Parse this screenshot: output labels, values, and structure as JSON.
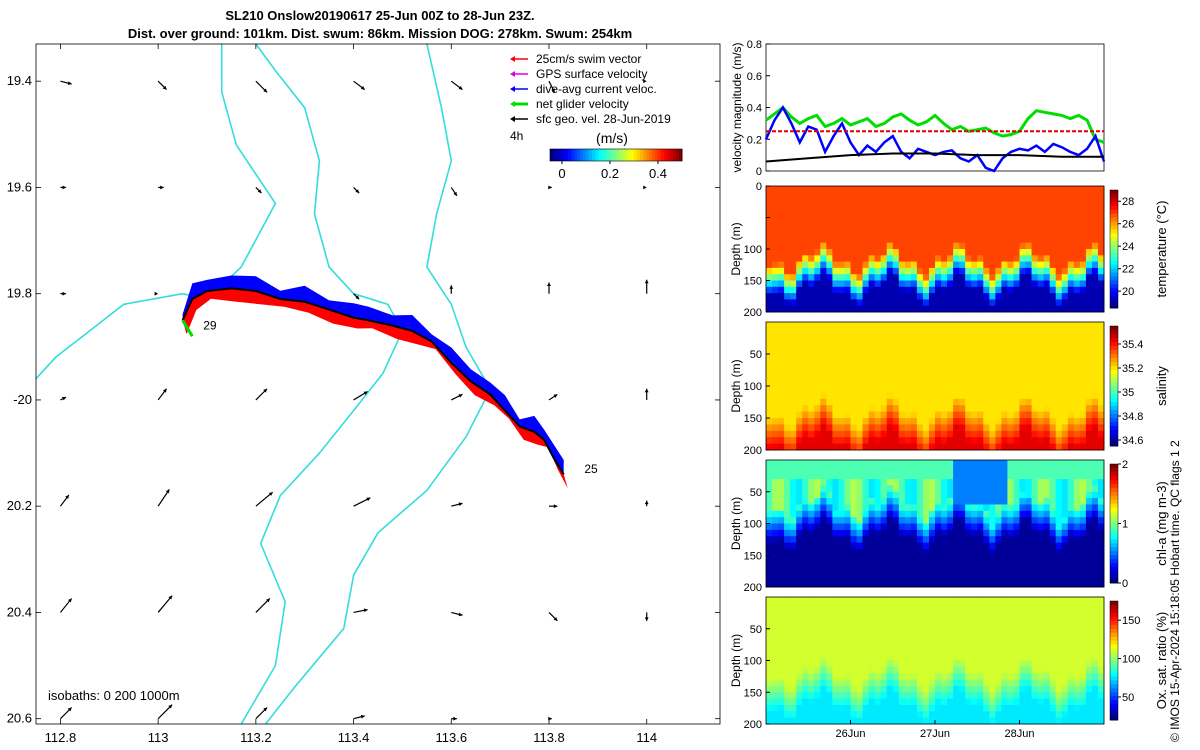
{
  "title_line1": "SL210 Onslow20190617 25-Jun 00Z to 28-Jun 23Z.",
  "title_line2": "Dist. over ground: 101km. Dist. swum: 86km. Mission DOG: 278km. Swum: 254km",
  "timestamp": "© IMOS 15-Apr-2024 15:18:05 Hobart time. QC flags 1  2",
  "colors": {
    "coast": "#33dddd",
    "swim": "#ff0000",
    "gps": "#dd00dd",
    "current": "#0000ff",
    "net": "#00dd00",
    "sfc": "#000000",
    "refline": "#dd0000"
  },
  "chart_data": [
    {
      "type": "map",
      "title": "SL210 Onslow20190617 25-Jun 00Z to 28-Jun 23Z.",
      "xlim": [
        112.75,
        114.15
      ],
      "ylim": [
        -20.61,
        -19.33
      ],
      "x_ticks": [
        112.8,
        113,
        113.2,
        113.4,
        113.6,
        113.8,
        114
      ],
      "x_tick_labels": [
        "112.8",
        "113",
        "113.2",
        "113.4",
        "113.6",
        "113.8",
        "114"
      ],
      "y_ticks": [
        -19.4,
        -19.6,
        -19.8,
        -20,
        -20.2,
        -20.4,
        -20.6
      ],
      "y_tick_labels": [
        "19.4",
        "19.6",
        "19.8",
        "-20",
        "20.2",
        "20.4",
        "20.6"
      ],
      "legend": {
        "position": "top-right",
        "entries": [
          {
            "label": "25cm/s swim vector",
            "color": "#ff0000"
          },
          {
            "label": "GPS surface velocity",
            "color": "#dd00dd"
          },
          {
            "label": "dive-avg current veloc.",
            "color": "#0000ff"
          },
          {
            "label": "net glider velocity",
            "color": "#00dd00"
          },
          {
            "label": "sfc geo. vel. 28-Jun-2019",
            "color": "#000000"
          }
        ],
        "interval_label": "4h",
        "colorbar_label": "(m/s)",
        "colorbar_ticks": [
          0,
          0.2,
          0.4
        ],
        "colorbar_tick_labels": [
          "0",
          "0.2",
          "0.4"
        ],
        "colorbar_range": [
          -0.05,
          0.5
        ]
      },
      "track_labels": [
        {
          "text": "29",
          "lon": 113.08,
          "lat": -19.86
        },
        {
          "text": "25",
          "lon": 113.86,
          "lat": -20.13
        }
      ],
      "track": [
        [
          113.05,
          -19.85
        ],
        [
          113.07,
          -19.81
        ],
        [
          113.1,
          -19.795
        ],
        [
          113.15,
          -19.79
        ],
        [
          113.2,
          -19.795
        ],
        [
          113.25,
          -19.81
        ],
        [
          113.3,
          -19.815
        ],
        [
          113.35,
          -19.83
        ],
        [
          113.4,
          -19.845
        ],
        [
          113.43,
          -19.85
        ],
        [
          113.48,
          -19.86
        ],
        [
          113.52,
          -19.87
        ],
        [
          113.56,
          -19.89
        ],
        [
          113.6,
          -19.93
        ],
        [
          113.64,
          -19.965
        ],
        [
          113.68,
          -19.99
        ],
        [
          113.71,
          -20.02
        ],
        [
          113.74,
          -20.05
        ],
        [
          113.77,
          -20.06
        ],
        [
          113.79,
          -20.075
        ],
        [
          113.81,
          -20.11
        ],
        [
          113.83,
          -20.14
        ]
      ],
      "coastline": [
        [
          113.13,
          -19.33
        ],
        [
          113.13,
          -19.42
        ],
        [
          113.16,
          -19.52
        ],
        [
          113.24,
          -19.63
        ],
        [
          113.17,
          -19.75
        ],
        [
          113.1,
          -19.81
        ],
        [
          113.05,
          -19.8
        ],
        [
          112.93,
          -19.82
        ],
        [
          112.79,
          -19.92
        ],
        [
          112.75,
          -19.96
        ]
      ],
      "isobath": [
        [
          113.2,
          -19.33
        ],
        [
          113.24,
          -19.38
        ],
        [
          113.3,
          -19.45
        ],
        [
          113.33,
          -19.55
        ],
        [
          113.32,
          -19.65
        ],
        [
          113.35,
          -19.75
        ],
        [
          113.4,
          -19.8
        ],
        [
          113.47,
          -19.82
        ],
        [
          113.5,
          -19.87
        ],
        [
          113.46,
          -19.95
        ],
        [
          113.4,
          -20.02
        ],
        [
          113.33,
          -20.1
        ],
        [
          113.25,
          -20.18
        ],
        [
          113.21,
          -20.27
        ],
        [
          113.26,
          -20.38
        ],
        [
          113.24,
          -20.5
        ],
        [
          113.17,
          -20.61
        ]
      ],
      "isobath2": [
        [
          113.55,
          -19.33
        ],
        [
          113.58,
          -19.45
        ],
        [
          113.6,
          -19.55
        ],
        [
          113.57,
          -19.65
        ],
        [
          113.55,
          -19.75
        ],
        [
          113.6,
          -19.82
        ],
        [
          113.63,
          -19.9
        ],
        [
          113.68,
          -19.98
        ],
        [
          113.63,
          -20.07
        ],
        [
          113.55,
          -20.17
        ],
        [
          113.45,
          -20.25
        ],
        [
          113.4,
          -20.33
        ],
        [
          113.38,
          -20.43
        ],
        [
          113.28,
          -20.54
        ],
        [
          113.22,
          -20.61
        ]
      ],
      "isobaths_label": "isobaths: 0   200  1000m",
      "sfc_vectors": [
        {
          "lon": 112.8,
          "lat": -19.4,
          "u": 0.04,
          "v": -0.01
        },
        {
          "lon": 113.0,
          "lat": -19.4,
          "u": 0.03,
          "v": -0.03
        },
        {
          "lon": 113.2,
          "lat": -19.4,
          "u": 0.04,
          "v": -0.04
        },
        {
          "lon": 113.4,
          "lat": -19.4,
          "u": 0.04,
          "v": -0.03
        },
        {
          "lon": 113.6,
          "lat": -19.4,
          "u": 0.04,
          "v": -0.03
        },
        {
          "lon": 113.8,
          "lat": -19.4,
          "u": 0.02,
          "v": -0.04
        },
        {
          "lon": 112.8,
          "lat": -19.6,
          "u": 0.02,
          "v": 0.0
        },
        {
          "lon": 113.0,
          "lat": -19.6,
          "u": 0.02,
          "v": 0.0
        },
        {
          "lon": 113.2,
          "lat": -19.6,
          "u": 0.02,
          "v": -0.02
        },
        {
          "lon": 113.4,
          "lat": -19.6,
          "u": 0.02,
          "v": -0.02
        },
        {
          "lon": 113.6,
          "lat": -19.6,
          "u": 0.02,
          "v": -0.03
        },
        {
          "lon": 113.8,
          "lat": -19.6,
          "u": 0.01,
          "v": 0.0
        },
        {
          "lon": 112.8,
          "lat": -19.8,
          "u": 0.02,
          "v": 0.0
        },
        {
          "lon": 113.0,
          "lat": -19.8,
          "u": 0.0,
          "v": 0.0
        },
        {
          "lon": 113.4,
          "lat": -19.8,
          "u": 0.02,
          "v": -0.02
        },
        {
          "lon": 113.6,
          "lat": -19.8,
          "u": 0.0,
          "v": 0.03
        },
        {
          "lon": 113.8,
          "lat": -19.8,
          "u": 0.0,
          "v": 0.04
        },
        {
          "lon": 114.0,
          "lat": -19.8,
          "u": 0.0,
          "v": 0.05
        },
        {
          "lon": 114.0,
          "lat": -19.6,
          "u": 0.0,
          "v": 0.0
        },
        {
          "lon": 114.0,
          "lat": -19.4,
          "u": 0.0,
          "v": 0.0
        },
        {
          "lon": 112.8,
          "lat": -20.0,
          "u": 0.02,
          "v": 0.01
        },
        {
          "lon": 113.0,
          "lat": -20.0,
          "u": 0.03,
          "v": 0.04
        },
        {
          "lon": 113.2,
          "lat": -20.0,
          "u": 0.04,
          "v": 0.04
        },
        {
          "lon": 113.4,
          "lat": -20.0,
          "u": 0.05,
          "v": 0.03
        },
        {
          "lon": 113.6,
          "lat": -20.0,
          "u": 0.04,
          "v": 0.02
        },
        {
          "lon": 113.8,
          "lat": -20.0,
          "u": 0.03,
          "v": 0.02
        },
        {
          "lon": 114.0,
          "lat": -20.0,
          "u": 0.0,
          "v": 0.04
        },
        {
          "lon": 112.8,
          "lat": -20.2,
          "u": 0.03,
          "v": 0.04
        },
        {
          "lon": 113.0,
          "lat": -20.2,
          "u": 0.04,
          "v": 0.06
        },
        {
          "lon": 113.2,
          "lat": -20.2,
          "u": 0.06,
          "v": 0.05
        },
        {
          "lon": 113.4,
          "lat": -20.2,
          "u": 0.06,
          "v": 0.03
        },
        {
          "lon": 113.6,
          "lat": -20.2,
          "u": 0.04,
          "v": 0.01
        },
        {
          "lon": 113.8,
          "lat": -20.2,
          "u": 0.03,
          "v": 0.0
        },
        {
          "lon": 114.0,
          "lat": -20.2,
          "u": 0.0,
          "v": 0.02
        },
        {
          "lon": 112.8,
          "lat": -20.4,
          "u": 0.04,
          "v": 0.05
        },
        {
          "lon": 113.0,
          "lat": -20.4,
          "u": 0.05,
          "v": 0.06
        },
        {
          "lon": 113.2,
          "lat": -20.4,
          "u": 0.05,
          "v": 0.05
        },
        {
          "lon": 113.4,
          "lat": -20.4,
          "u": 0.05,
          "v": 0.01
        },
        {
          "lon": 113.6,
          "lat": -20.4,
          "u": 0.04,
          "v": -0.01
        },
        {
          "lon": 113.8,
          "lat": -20.4,
          "u": 0.03,
          "v": -0.03
        },
        {
          "lon": 114.0,
          "lat": -20.4,
          "u": 0.0,
          "v": -0.03
        },
        {
          "lon": 112.8,
          "lat": -20.6,
          "u": 0.04,
          "v": 0.04
        },
        {
          "lon": 113.0,
          "lat": -20.6,
          "u": 0.05,
          "v": 0.05
        },
        {
          "lon": 113.2,
          "lat": -20.6,
          "u": 0.04,
          "v": 0.04
        },
        {
          "lon": 113.4,
          "lat": -20.6,
          "u": 0.04,
          "v": 0.01
        },
        {
          "lon": 113.6,
          "lat": -20.6,
          "u": 0.02,
          "v": 0.0
        },
        {
          "lon": 113.8,
          "lat": -20.6,
          "u": 0.01,
          "v": 0.0
        }
      ]
    },
    {
      "type": "line",
      "ylabel": "velocity magnitude (m/s)",
      "ylim": [
        0,
        0.8
      ],
      "y_ticks": [
        0,
        0.2,
        0.4,
        0.6,
        0.8
      ],
      "y_tick_labels": [
        "0",
        "0.2",
        "0.4",
        "0.6",
        "0.8"
      ],
      "x_range_days": [
        0,
        4
      ],
      "series": [
        {
          "name": "net glider velocity",
          "color": "#00dd00",
          "x": [
            0,
            0.1,
            0.2,
            0.3,
            0.4,
            0.5,
            0.6,
            0.7,
            0.8,
            0.9,
            1.0,
            1.1,
            1.2,
            1.3,
            1.4,
            1.5,
            1.6,
            1.7,
            1.8,
            1.9,
            2.0,
            2.1,
            2.2,
            2.3,
            2.4,
            2.5,
            2.6,
            2.7,
            2.8,
            2.9,
            3.0,
            3.1,
            3.2,
            3.3,
            3.4,
            3.5,
            3.6,
            3.7,
            3.8,
            3.9,
            4.0
          ],
          "values": [
            0.32,
            0.36,
            0.4,
            0.34,
            0.3,
            0.33,
            0.35,
            0.28,
            0.3,
            0.33,
            0.29,
            0.31,
            0.33,
            0.28,
            0.3,
            0.34,
            0.36,
            0.32,
            0.29,
            0.31,
            0.35,
            0.3,
            0.26,
            0.28,
            0.25,
            0.26,
            0.27,
            0.24,
            0.22,
            0.23,
            0.25,
            0.33,
            0.38,
            0.37,
            0.36,
            0.35,
            0.33,
            0.35,
            0.32,
            0.2,
            0.18
          ]
        },
        {
          "name": "dive-avg current veloc.",
          "color": "#0000ff",
          "x": [
            0,
            0.1,
            0.2,
            0.3,
            0.4,
            0.5,
            0.6,
            0.7,
            0.8,
            0.9,
            1.0,
            1.1,
            1.2,
            1.3,
            1.4,
            1.5,
            1.6,
            1.7,
            1.8,
            1.9,
            2.0,
            2.1,
            2.2,
            2.3,
            2.4,
            2.5,
            2.6,
            2.7,
            2.8,
            2.9,
            3.0,
            3.1,
            3.2,
            3.3,
            3.4,
            3.5,
            3.6,
            3.7,
            3.8,
            3.9,
            4.0
          ],
          "values": [
            0.2,
            0.32,
            0.4,
            0.3,
            0.18,
            0.28,
            0.26,
            0.12,
            0.22,
            0.3,
            0.18,
            0.1,
            0.16,
            0.12,
            0.18,
            0.22,
            0.12,
            0.08,
            0.14,
            0.12,
            0.1,
            0.12,
            0.13,
            0.08,
            0.06,
            0.1,
            0.02,
            0.0,
            0.08,
            0.12,
            0.14,
            0.13,
            0.16,
            0.12,
            0.17,
            0.15,
            0.12,
            0.1,
            0.14,
            0.22,
            0.06
          ]
        },
        {
          "name": "sfc geo. vel.",
          "color": "#000000",
          "x": [
            0,
            0.5,
            1.0,
            1.5,
            2.0,
            2.5,
            3.0,
            3.5,
            4.0
          ],
          "values": [
            0.06,
            0.08,
            0.1,
            0.11,
            0.11,
            0.1,
            0.1,
            0.09,
            0.09
          ]
        },
        {
          "name": "25cm/s reference",
          "color": "#dd0000",
          "x": [
            0,
            4
          ],
          "values": [
            0.25,
            0.25
          ]
        }
      ]
    },
    {
      "type": "heatmap",
      "variable": "temperature",
      "ylabel": "Depth (m)",
      "colorbar_label": "temperature (°C)",
      "ylim": [
        0,
        200
      ],
      "y_ticks": [
        0,
        50,
        100,
        150,
        200
      ],
      "y_tick_labels": [
        "0",
        "",
        "100",
        "150",
        "200"
      ],
      "clim": [
        18.5,
        29
      ],
      "colorbar_ticks": [
        20,
        22,
        24,
        26,
        28
      ],
      "colorbar_tick_labels": [
        "20",
        "22",
        "24",
        "26",
        "28"
      ],
      "surface_value": 27,
      "mixed_depth": 115,
      "deep_value": 19
    },
    {
      "type": "heatmap",
      "variable": "salinity",
      "ylabel": "Depth (m)",
      "colorbar_label": "salinity",
      "ylim": [
        0,
        200
      ],
      "y_ticks": [
        50,
        100,
        150,
        200
      ],
      "y_tick_labels": [
        "50",
        "100",
        "150",
        "200"
      ],
      "clim": [
        34.55,
        35.55
      ],
      "colorbar_ticks": [
        34.6,
        34.8,
        35,
        35.2,
        35.4
      ],
      "colorbar_tick_labels": [
        "34.6",
        "34.8",
        "35",
        "35.2",
        "35.4"
      ],
      "surface_value": 35.2,
      "mixed_depth": 140,
      "deep_value": 35.45
    },
    {
      "type": "heatmap",
      "variable": "chl-a",
      "ylabel": "Depth (m)",
      "colorbar_label": "chl-a (mg m-3)",
      "ylim": [
        0,
        200
      ],
      "y_ticks": [
        50,
        100,
        150,
        200
      ],
      "y_tick_labels": [
        "50",
        "100",
        "150",
        "200"
      ],
      "clim": [
        0,
        2
      ],
      "colorbar_ticks": [
        0,
        1,
        2
      ],
      "colorbar_tick_labels": [
        "0",
        "1",
        "2"
      ],
      "surface_value": 0.9,
      "mixed_depth": 70,
      "deep_value": 0.05
    },
    {
      "type": "heatmap",
      "variable": "oxygen saturation",
      "ylabel": "Depth (m)",
      "colorbar_label": "Ox. sat. ratio (%)",
      "ylim": [
        0,
        200
      ],
      "y_ticks": [
        50,
        100,
        150,
        200
      ],
      "y_tick_labels": [
        "50",
        "100",
        "150",
        "200"
      ],
      "clim": [
        20,
        175
      ],
      "colorbar_ticks": [
        50,
        100,
        150
      ],
      "colorbar_tick_labels": [
        "50",
        "100",
        "150"
      ],
      "surface_value": 110,
      "mixed_depth": 120,
      "deep_value": 75,
      "x_ticks_days": [
        1,
        2,
        3
      ],
      "x_tick_labels": [
        "26Jun",
        "27Jun",
        "28Jun"
      ]
    }
  ]
}
